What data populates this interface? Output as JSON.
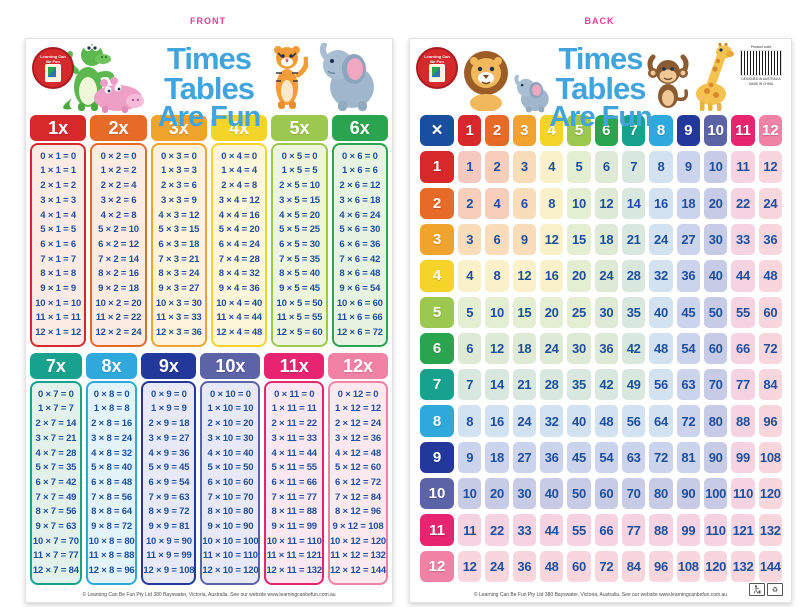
{
  "page": {
    "front_label": "FRONT",
    "back_label": "BACK",
    "label_color": "#e73b95"
  },
  "front": {
    "logo_text": "Learning Can Be Fun",
    "title_line1": "Times Tables",
    "title_line2": "Are Fun",
    "title_color": "#41a4dd",
    "footer": "© Learning Can Be Fun Pty Ltd 380 Bayswater, Victoria, Australia. See our website www.learningcanbefun.com.au",
    "animals_left": [
      "crocodile",
      "hippo"
    ],
    "animals_right": [
      "tiger",
      "elephant"
    ],
    "fact_text_color": "#1e4f9d",
    "columns": [
      {
        "label": "1x",
        "color": "#d7282c",
        "tint": "#fcebe4",
        "facts": [
          "0 × 1 = 0",
          "1 × 1 = 1",
          "2 × 1 = 2",
          "3 × 1 = 3",
          "4 × 1 = 4",
          "5 × 1 = 5",
          "6 × 1 = 6",
          "7 × 1 = 7",
          "8 × 1 = 8",
          "9 × 1 = 9",
          "10 × 1 = 10",
          "11 × 1 = 11",
          "12 × 1 = 12"
        ]
      },
      {
        "label": "2x",
        "color": "#e66a28",
        "tint": "#fcebe0",
        "facts": [
          "0 × 2 = 0",
          "1 × 2 = 2",
          "2 × 2 = 4",
          "3 × 2 = 6",
          "4 × 2 = 8",
          "5 × 2 = 10",
          "6 × 2 = 12",
          "7 × 2 = 14",
          "8 × 2 = 16",
          "9 × 2 = 18",
          "10 × 2 = 20",
          "11 × 2 = 22",
          "12 × 2 = 24"
        ]
      },
      {
        "label": "3x",
        "color": "#f0a42e",
        "tint": "#fdf3da",
        "facts": [
          "0 × 3 = 0",
          "1 × 3 = 3",
          "2 × 3 = 6",
          "3 × 3 = 9",
          "4 × 3 = 12",
          "5 × 3 = 15",
          "6 × 3 = 18",
          "7 × 3 = 21",
          "8 × 3 = 24",
          "9 × 3 = 27",
          "10 × 3 = 30",
          "11 × 3 = 33",
          "12 × 3 = 36"
        ]
      },
      {
        "label": "4x",
        "color": "#f5d42a",
        "tint": "#fdf6d8",
        "facts": [
          "0 × 4 = 0",
          "1 × 4 = 4",
          "2 × 4 = 8",
          "3 × 4 = 12",
          "4 × 4 = 16",
          "5 × 4 = 20",
          "6 × 4 = 24",
          "7 × 4 = 28",
          "8 × 4 = 32",
          "9 × 4 = 36",
          "10 × 4 = 40",
          "11 × 4 = 44",
          "12 × 4 = 48"
        ]
      },
      {
        "label": "5x",
        "color": "#9cc850",
        "tint": "#eef5dd",
        "facts": [
          "0 × 5 = 0",
          "1 × 5 = 5",
          "2 × 5 = 10",
          "3 × 5 = 15",
          "4 × 5 = 20",
          "5 × 5 = 25",
          "6 × 5 = 30",
          "7 × 5 = 35",
          "8 × 5 = 40",
          "9 × 5 = 45",
          "10 × 5 = 50",
          "11 × 5 = 55",
          "12 × 5 = 60"
        ]
      },
      {
        "label": "6x",
        "color": "#2ba44f",
        "tint": "#e7f3e2",
        "facts": [
          "0 × 6 = 0",
          "1 × 6 = 6",
          "2 × 6 = 12",
          "3 × 6 = 18",
          "4 × 6 = 24",
          "5 × 6 = 30",
          "6 × 6 = 36",
          "7 × 6 = 42",
          "8 × 6 = 48",
          "9 × 6 = 54",
          "10 × 6 = 60",
          "11 × 6 = 66",
          "12 × 6 = 72"
        ]
      },
      {
        "label": "7x",
        "color": "#17a28e",
        "tint": "#e2f1ec",
        "facts": [
          "0 × 7 = 0",
          "1 × 7 = 7",
          "2 × 7 = 14",
          "3 × 7 = 21",
          "4 × 7 = 28",
          "5 × 7 = 35",
          "6 × 7 = 42",
          "7 × 7 = 49",
          "8 × 7 = 56",
          "9 × 7 = 63",
          "10 × 7 = 70",
          "11 × 7 = 77",
          "12 × 7 = 84"
        ]
      },
      {
        "label": "8x",
        "color": "#2fa9db",
        "tint": "#e3f3fa",
        "facts": [
          "0 × 8 = 0",
          "1 × 8 = 8",
          "2 × 8 = 16",
          "3 × 8 = 24",
          "4 × 8 = 32",
          "5 × 8 = 40",
          "6 × 8 = 48",
          "7 × 8 = 56",
          "8 × 8 = 64",
          "9 × 8 = 72",
          "10 × 8 = 80",
          "11 × 8 = 88",
          "12 × 8 = 96"
        ]
      },
      {
        "label": "9x",
        "color": "#22389a",
        "tint": "#e7e9f6",
        "facts": [
          "0 × 9 = 0",
          "1 × 9 = 9",
          "2 × 9 = 18",
          "3 × 9 = 27",
          "4 × 9 = 36",
          "5 × 9 = 45",
          "6 × 9 = 54",
          "7 × 9 = 63",
          "8 × 9 = 72",
          "9 × 9 = 81",
          "10 × 9 = 90",
          "11 × 9 = 99",
          "12 × 9 = 108"
        ]
      },
      {
        "label": "10x",
        "color": "#5c63a6",
        "tint": "#e7e9f6",
        "facts": [
          "0 × 10 = 0",
          "1 × 10 = 10",
          "2 × 10 = 20",
          "3 × 10 = 30",
          "4 × 10 = 40",
          "5 × 10 = 50",
          "6 × 10 = 60",
          "7 × 10 = 70",
          "8 × 10 = 80",
          "9 × 10 = 90",
          "10 × 10 = 100",
          "11 × 10 = 110",
          "12 × 10 = 120"
        ]
      },
      {
        "label": "11x",
        "color": "#e6246f",
        "tint": "#fbe7ef",
        "facts": [
          "0 × 11 = 0",
          "1 × 11 = 11",
          "2 × 11 = 22",
          "3 × 11 = 33",
          "4 × 11 = 44",
          "5 × 11 = 55",
          "6 × 11 = 66",
          "7 × 11 = 77",
          "8 × 11 = 88",
          "9 × 11 = 99",
          "10 × 11 = 110",
          "11 × 11 = 121",
          "12 × 11 = 132"
        ]
      },
      {
        "label": "12x",
        "color": "#ef82a5",
        "tint": "#fce9ef",
        "facts": [
          "0 × 12 = 0",
          "1 × 12 = 12",
          "2 × 12 = 24",
          "3 × 12 = 36",
          "4 × 12 = 48",
          "5 × 12 = 60",
          "6 × 12 = 72",
          "7 × 12 = 84",
          "8 × 12 = 96",
          "9 × 12 = 108",
          "10 × 12 = 120",
          "11 × 12 = 132",
          "12 × 12 = 144"
        ]
      }
    ]
  },
  "back": {
    "logo_text": "Learning Can Be Fun",
    "title_line1": "Times Tables",
    "title_line2": "Are Fun",
    "product_code_label": "Product code",
    "origin_line1": "DESIGNED IN AUSTRALIA",
    "origin_line2": "MADE IN CHINA",
    "footer": "© Learning Can Be Fun Pty Ltd 380 Bayswater, Victoria, Australia. See our website www.learningcanbefun.com.au",
    "animals": [
      "lion",
      "elephant",
      "monkey",
      "giraffe"
    ],
    "grid": {
      "times_symbol": "×",
      "corner_color": "#1a4fa0",
      "value_color": "#1e4f9d",
      "headers": [
        "1",
        "2",
        "3",
        "4",
        "5",
        "6",
        "7",
        "8",
        "9",
        "10",
        "11",
        "12"
      ],
      "header_colors": [
        "#d7282c",
        "#e66a28",
        "#f0a42e",
        "#f5d42a",
        "#9cc850",
        "#2ba44f",
        "#17a28e",
        "#2fa9db",
        "#22389a",
        "#5c63a6",
        "#e6246f",
        "#ef82a5"
      ],
      "pastels": [
        "#f5c8c0",
        "#f6ceba",
        "#f9ddbb",
        "#faf0c9",
        "#e4eed3",
        "#deead5",
        "#d8e8df",
        "#d2e2f1",
        "#cbd4ec",
        "#c7cbe5",
        "#f6d3e0",
        "#f7d6dd"
      ],
      "rows": [
        {
          "header": "1",
          "values": [
            "1",
            "2",
            "3",
            "4",
            "5",
            "6",
            "7",
            "8",
            "9",
            "10",
            "11",
            "12"
          ]
        },
        {
          "header": "2",
          "values": [
            "2",
            "4",
            "6",
            "8",
            "10",
            "12",
            "14",
            "16",
            "18",
            "20",
            "22",
            "24"
          ]
        },
        {
          "header": "3",
          "values": [
            "3",
            "6",
            "9",
            "12",
            "15",
            "18",
            "21",
            "24",
            "27",
            "30",
            "33",
            "36"
          ]
        },
        {
          "header": "4",
          "values": [
            "4",
            "8",
            "12",
            "16",
            "20",
            "24",
            "28",
            "32",
            "36",
            "40",
            "44",
            "48"
          ]
        },
        {
          "header": "5",
          "values": [
            "5",
            "10",
            "15",
            "20",
            "25",
            "30",
            "35",
            "40",
            "45",
            "50",
            "55",
            "60"
          ]
        },
        {
          "header": "6",
          "values": [
            "6",
            "12",
            "18",
            "24",
            "30",
            "36",
            "42",
            "48",
            "54",
            "60",
            "66",
            "72"
          ]
        },
        {
          "header": "7",
          "values": [
            "7",
            "14",
            "21",
            "28",
            "35",
            "42",
            "49",
            "56",
            "63",
            "70",
            "77",
            "84"
          ]
        },
        {
          "header": "8",
          "values": [
            "8",
            "16",
            "24",
            "32",
            "40",
            "48",
            "56",
            "64",
            "72",
            "80",
            "88",
            "96"
          ]
        },
        {
          "header": "9",
          "values": [
            "9",
            "18",
            "27",
            "36",
            "45",
            "54",
            "63",
            "72",
            "81",
            "90",
            "99",
            "108"
          ]
        },
        {
          "header": "10",
          "values": [
            "10",
            "20",
            "30",
            "40",
            "50",
            "60",
            "70",
            "80",
            "90",
            "100",
            "110",
            "120"
          ]
        },
        {
          "header": "11",
          "values": [
            "11",
            "22",
            "33",
            "44",
            "55",
            "66",
            "77",
            "88",
            "99",
            "110",
            "121",
            "132"
          ]
        },
        {
          "header": "12",
          "values": [
            "12",
            "24",
            "36",
            "48",
            "60",
            "72",
            "84",
            "96",
            "108",
            "120",
            "132",
            "144"
          ]
        }
      ]
    }
  }
}
